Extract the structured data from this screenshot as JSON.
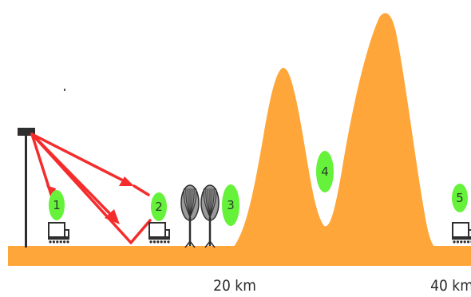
{
  "colors": {
    "terrain": "#FFA63A",
    "signal": "#F42C2C",
    "marker": "#66F23A",
    "structure": "#2E2E2E",
    "vehicle_fill": "#ffffff"
  },
  "scale": {
    "labels": [
      "20 km",
      "40 km"
    ]
  },
  "markers": [
    {
      "label": "1"
    },
    {
      "label": "2"
    },
    {
      "label": "3"
    },
    {
      "label": "4"
    },
    {
      "label": "5"
    }
  ],
  "icons": {
    "antenna": "antenna-tower-icon",
    "vehicle": "vehicle-icon",
    "tree": "tree-icon",
    "mountain": "mountain-icon"
  }
}
